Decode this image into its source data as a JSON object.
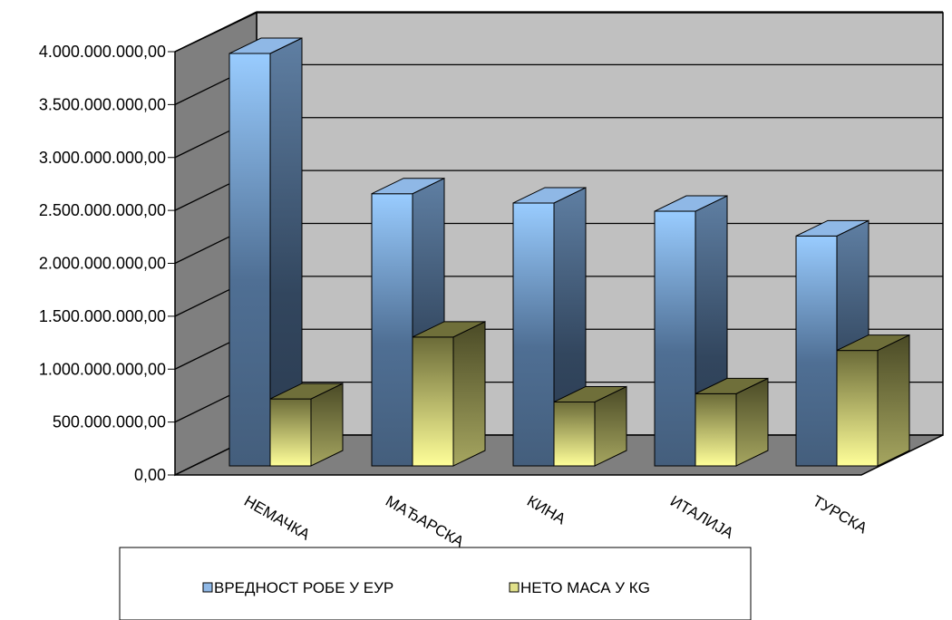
{
  "chart_data": {
    "type": "bar",
    "categories": [
      "НЕМАЧКА",
      "МАЂАРСКА",
      "КИНА",
      "ИТАЛИЈА",
      "ТУРСКА"
    ],
    "series": [
      {
        "name": "ВРЕДНОСТ РОБЕ У ЕУР",
        "values": [
          4000000000,
          2640000000,
          2550000000,
          2470000000,
          2230000000
        ],
        "color": "#7fa7d6"
      },
      {
        "name": "НЕТО МАСА У КG",
        "values": [
          650000000,
          1250000000,
          620000000,
          700000000,
          1120000000
        ],
        "color": "#d8d890"
      }
    ],
    "y_ticks": [
      "0,00",
      "500.000.000,00",
      "1.000.000.000,00",
      "1.500.000.000,00",
      "2.000.000.000,00",
      "2.500.000.000,00",
      "3.000.000.000,00",
      "3.500.000.000,00",
      "4.000.000.000,00"
    ],
    "ylim": [
      0,
      4000000000
    ],
    "grid": true,
    "three_d": true,
    "legend_position": "bottom",
    "title": "",
    "xlabel": "",
    "ylabel": ""
  }
}
